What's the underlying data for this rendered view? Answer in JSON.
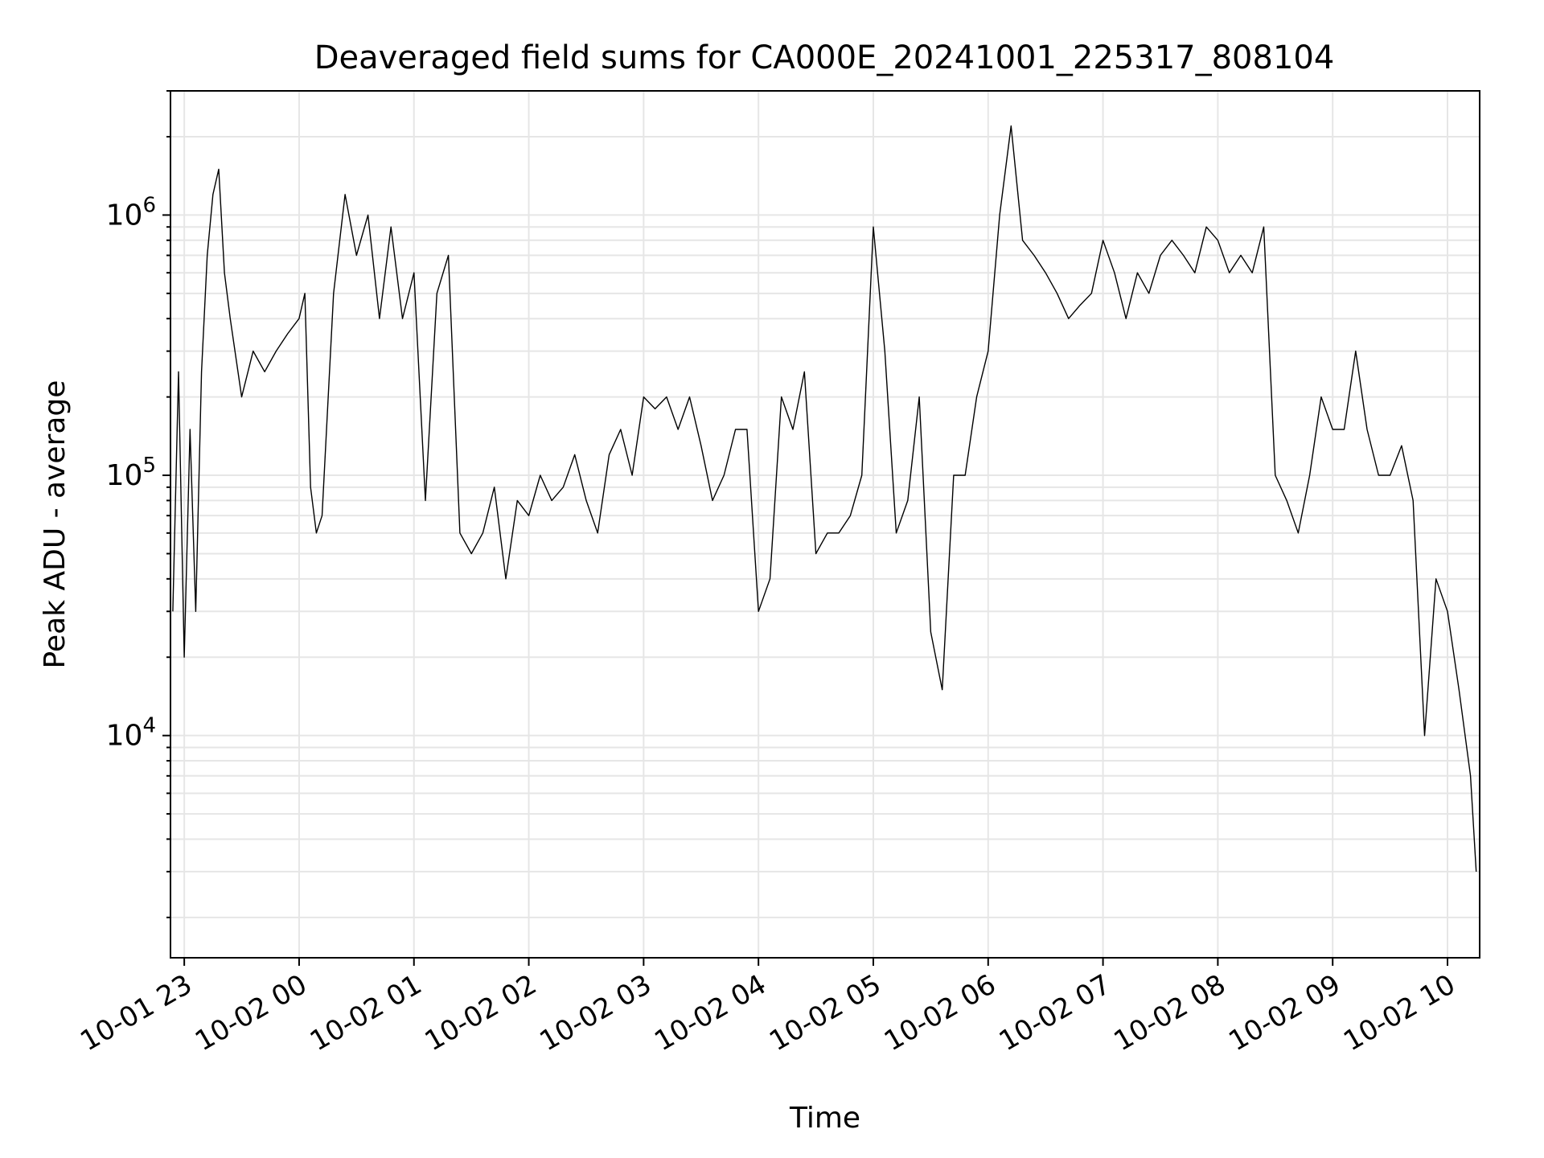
{
  "chart_data": {
    "type": "line",
    "title": "Deaveraged field sums for CA000E_20241001_225317_808104",
    "xlabel": "Time",
    "ylabel": "Peak ADU - average",
    "yscale": "log",
    "grid": "on",
    "line_color": "#000000",
    "grid_color": "#e6e6e6",
    "x_ticks": [
      "10-01 23",
      "10-02 00",
      "10-02 01",
      "10-02 02",
      "10-02 03",
      "10-02 04",
      "10-02 05",
      "10-02 06",
      "10-02 07",
      "10-02 08",
      "10-02 09",
      "10-02 10"
    ],
    "x_tick_hours": [
      0,
      1,
      2,
      3,
      4,
      5,
      6,
      7,
      8,
      9,
      10,
      11
    ],
    "xlim_hours": [
      -0.12,
      11.28
    ],
    "y_ticks": [
      {
        "value": 10000,
        "base": "10",
        "exp": "4"
      },
      {
        "value": 100000,
        "base": "10",
        "exp": "5"
      },
      {
        "value": 1000000,
        "base": "10",
        "exp": "6"
      }
    ],
    "ylim": [
      1400,
      3000000
    ],
    "series": [
      {
        "name": "",
        "x_hours": [
          -0.1,
          -0.05,
          0.0,
          0.05,
          0.1,
          0.15,
          0.2,
          0.25,
          0.3,
          0.35,
          0.4,
          0.5,
          0.6,
          0.7,
          0.8,
          0.9,
          1.0,
          1.05,
          1.1,
          1.15,
          1.2,
          1.3,
          1.4,
          1.5,
          1.6,
          1.7,
          1.8,
          1.9,
          2.0,
          2.1,
          2.2,
          2.3,
          2.4,
          2.5,
          2.6,
          2.7,
          2.8,
          2.9,
          3.0,
          3.1,
          3.2,
          3.3,
          3.4,
          3.5,
          3.6,
          3.7,
          3.8,
          3.9,
          4.0,
          4.1,
          4.2,
          4.3,
          4.4,
          4.5,
          4.6,
          4.7,
          4.8,
          4.9,
          5.0,
          5.1,
          5.2,
          5.3,
          5.4,
          5.5,
          5.6,
          5.7,
          5.8,
          5.9,
          6.0,
          6.1,
          6.2,
          6.3,
          6.4,
          6.5,
          6.6,
          6.7,
          6.8,
          6.9,
          7.0,
          7.1,
          7.2,
          7.3,
          7.4,
          7.5,
          7.6,
          7.7,
          7.8,
          7.9,
          8.0,
          8.1,
          8.2,
          8.3,
          8.4,
          8.5,
          8.6,
          8.7,
          8.8,
          8.9,
          9.0,
          9.1,
          9.2,
          9.3,
          9.4,
          9.5,
          9.6,
          9.7,
          9.8,
          9.9,
          10.0,
          10.1,
          10.2,
          10.3,
          10.4,
          10.5,
          10.6,
          10.7,
          10.8,
          10.9,
          11.0,
          11.1,
          11.2,
          11.25
        ],
        "y": [
          30000,
          250000,
          20000,
          150000,
          30000,
          250000,
          700000,
          1200000,
          1500000,
          600000,
          400000,
          200000,
          300000,
          250000,
          300000,
          350000,
          400000,
          500000,
          90000,
          60000,
          70000,
          500000,
          1200000,
          700000,
          1000000,
          400000,
          900000,
          400000,
          600000,
          80000,
          500000,
          700000,
          60000,
          50000,
          60000,
          90000,
          40000,
          80000,
          70000,
          100000,
          80000,
          90000,
          120000,
          80000,
          60000,
          120000,
          150000,
          100000,
          200000,
          180000,
          200000,
          150000,
          200000,
          130000,
          80000,
          100000,
          150000,
          150000,
          30000,
          40000,
          200000,
          150000,
          250000,
          50000,
          60000,
          60000,
          70000,
          100000,
          900000,
          300000,
          60000,
          80000,
          200000,
          25000,
          15000,
          100000,
          100000,
          200000,
          300000,
          1000000,
          2200000,
          800000,
          700000,
          600000,
          500000,
          400000,
          450000,
          500000,
          800000,
          600000,
          400000,
          600000,
          500000,
          700000,
          800000,
          700000,
          600000,
          900000,
          800000,
          600000,
          700000,
          600000,
          900000,
          100000,
          80000,
          60000,
          100000,
          200000,
          150000,
          150000,
          300000,
          150000,
          100000,
          100000,
          130000,
          80000,
          10000,
          40000,
          30000,
          15000,
          7000,
          3000
        ]
      }
    ]
  }
}
